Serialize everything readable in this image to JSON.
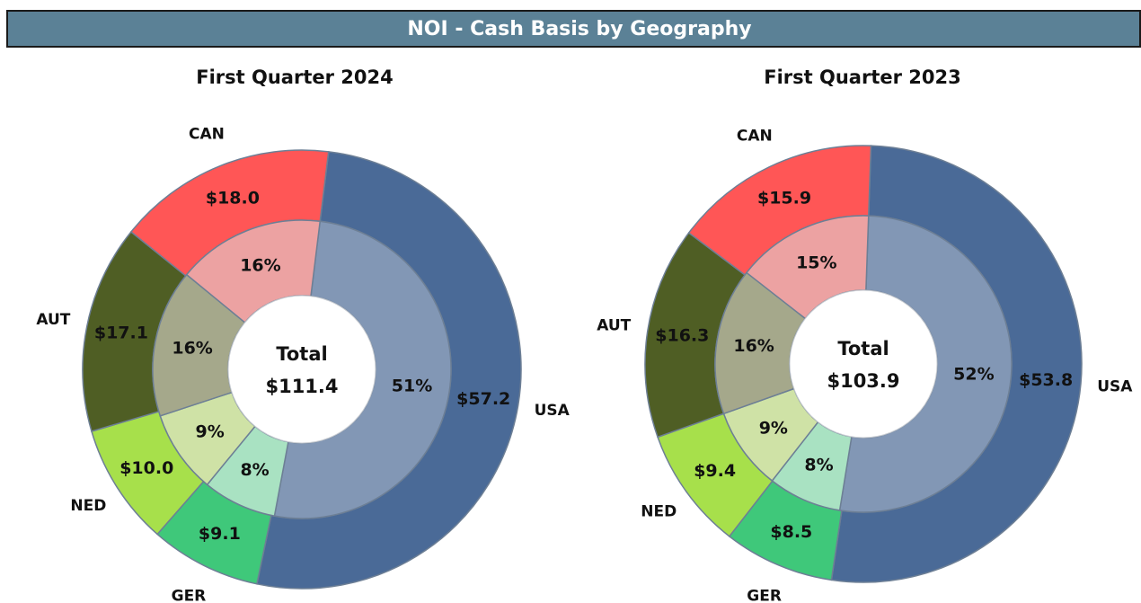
{
  "title": "NOI - Cash Basis by Geography",
  "chart_data": [
    {
      "type": "pie",
      "title": "First Quarter 2024",
      "categories": [
        "USA",
        "GER",
        "NED",
        "AUT",
        "CAN"
      ],
      "colors": [
        "#4a6a97",
        "#3fc87a",
        "#a7e04b",
        "#4f5e24",
        "#ff5656"
      ],
      "inner_colors": [
        "#8297b5",
        "#a9e2c2",
        "#cfe2a6",
        "#a5a88b",
        "#eca2a2"
      ],
      "series": [
        {
          "values": [
            57.2,
            9.1,
            10.0,
            17.1,
            18.0
          ],
          "value_labels": [
            "$57.2",
            "$9.1",
            "$10.0",
            "$17.1",
            "$18.0"
          ]
        },
        {
          "values": [
            51,
            8,
            9,
            16,
            16
          ],
          "value_labels": [
            "51%",
            "8%",
            "9%",
            "16%",
            "16%"
          ]
        }
      ],
      "center_label": "Total",
      "total": 111.4,
      "total_label": "$111.4"
    },
    {
      "type": "pie",
      "title": "First Quarter 2023",
      "categories": [
        "USA",
        "GER",
        "NED",
        "AUT",
        "CAN"
      ],
      "colors": [
        "#4a6a97",
        "#3fc87a",
        "#a7e04b",
        "#4f5e24",
        "#ff5656"
      ],
      "inner_colors": [
        "#8297b5",
        "#a9e2c2",
        "#cfe2a6",
        "#a5a88b",
        "#eca2a2"
      ],
      "series": [
        {
          "values": [
            53.8,
            8.5,
            9.4,
            16.3,
            15.9
          ],
          "value_labels": [
            "$53.8",
            "$8.5",
            "$9.4",
            "$16.3",
            "$15.9"
          ]
        },
        {
          "values": [
            52,
            8,
            9,
            16,
            15
          ],
          "value_labels": [
            "52%",
            "8%",
            "9%",
            "16%",
            "15%"
          ]
        }
      ],
      "center_label": "Total",
      "total": 103.9,
      "total_label": "$103.9"
    }
  ]
}
